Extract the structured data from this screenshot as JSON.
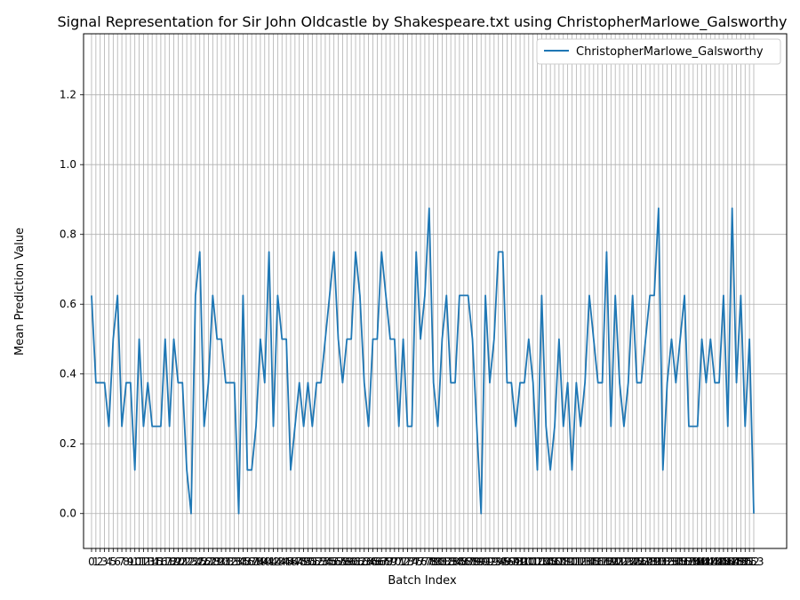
{
  "chart_data": {
    "type": "line",
    "title": "Signal Representation for Sir John Oldcastle by Shakespeare.txt using ChristopherMarlowe_Galsworthy",
    "xlabel": "Batch Index",
    "ylabel": "Mean Prediction Value",
    "ylim": [
      -0.1,
      1.375
    ],
    "yticks": [
      "0.0",
      "0.2",
      "0.4",
      "0.6",
      "0.8",
      "1.0",
      "1.2"
    ],
    "grid": true,
    "legend_position": "top-right",
    "series": [
      {
        "name": "ChristopherMarlowe_Galsworthy",
        "color": "#1f77b4",
        "x": [
          0,
          1,
          2,
          3,
          4,
          5,
          6,
          7,
          8,
          9,
          10,
          11,
          12,
          13,
          14,
          15,
          16,
          17,
          18,
          19,
          20,
          21,
          22,
          23,
          24,
          25,
          26,
          27,
          28,
          29,
          30,
          31,
          32,
          33,
          34,
          35,
          36,
          37,
          38,
          39,
          40,
          41,
          42,
          43,
          44,
          45,
          46,
          47,
          48,
          49,
          50,
          51,
          52,
          53,
          54,
          55,
          56,
          57,
          58,
          59,
          60,
          61,
          62,
          63,
          64,
          65,
          66,
          67,
          68,
          69,
          70,
          71,
          72,
          73,
          74,
          75,
          76,
          77,
          78,
          79,
          80,
          81,
          82,
          83,
          84,
          85,
          86,
          87,
          88,
          89,
          90,
          91,
          92,
          93,
          94,
          95,
          96,
          97,
          98,
          99,
          100,
          101,
          102,
          103,
          104,
          105,
          106,
          107,
          108,
          109,
          110,
          111,
          112,
          113,
          114,
          115,
          116,
          117,
          118,
          119,
          120,
          121,
          122,
          123,
          124,
          125,
          126,
          127,
          128,
          129,
          130,
          131,
          132,
          133,
          134,
          135,
          136,
          137,
          138,
          139,
          140,
          141,
          142,
          143,
          144,
          145,
          146,
          147,
          148,
          149,
          150,
          151,
          152,
          153
        ],
        "values": [
          0.625,
          0.375,
          0.375,
          0.375,
          0.25,
          0.5,
          0.625,
          0.25,
          0.375,
          0.375,
          0.125,
          0.5,
          0.25,
          0.375,
          0.25,
          0.25,
          0.25,
          0.5,
          0.25,
          0.5,
          0.375,
          0.375,
          0.125,
          0.0,
          0.625,
          0.75,
          0.25,
          0.375,
          0.625,
          0.5,
          0.5,
          0.375,
          0.375,
          0.375,
          0.0,
          0.625,
          0.125,
          0.125,
          0.25,
          0.5,
          0.375,
          0.75,
          0.25,
          0.625,
          0.5,
          0.5,
          0.125,
          0.25,
          0.375,
          0.25,
          0.375,
          0.25,
          0.375,
          0.375,
          0.5,
          0.625,
          0.75,
          0.5,
          0.375,
          0.5,
          0.5,
          0.75,
          0.625,
          0.375,
          0.25,
          0.5,
          0.5,
          0.75,
          0.625,
          0.5,
          0.5,
          0.25,
          0.5,
          0.25,
          0.25,
          0.75,
          0.5,
          0.625,
          0.875,
          0.375,
          0.25,
          0.5,
          0.625,
          0.375,
          0.375,
          0.625,
          0.625,
          0.625,
          0.5,
          0.25,
          0.0,
          0.625,
          0.375,
          0.5,
          0.75,
          0.75,
          0.375,
          0.375,
          0.25,
          0.375,
          0.375,
          0.5,
          0.375,
          0.125,
          0.625,
          0.25,
          0.125,
          0.25,
          0.5,
          0.25,
          0.375,
          0.125,
          0.375,
          0.25,
          0.375,
          0.625,
          0.5,
          0.375,
          0.375,
          0.75,
          0.25,
          0.625,
          0.375,
          0.25,
          0.375,
          0.625,
          0.375,
          0.375,
          0.5,
          0.625,
          0.625,
          0.875,
          0.125,
          0.375,
          0.5,
          0.375,
          0.5,
          0.625,
          0.25,
          0.25,
          0.25,
          0.5,
          0.375,
          0.5,
          0.375,
          0.375,
          0.625,
          0.25,
          0.875,
          0.375,
          0.625,
          0.25,
          0.5,
          0.0
        ]
      }
    ]
  }
}
